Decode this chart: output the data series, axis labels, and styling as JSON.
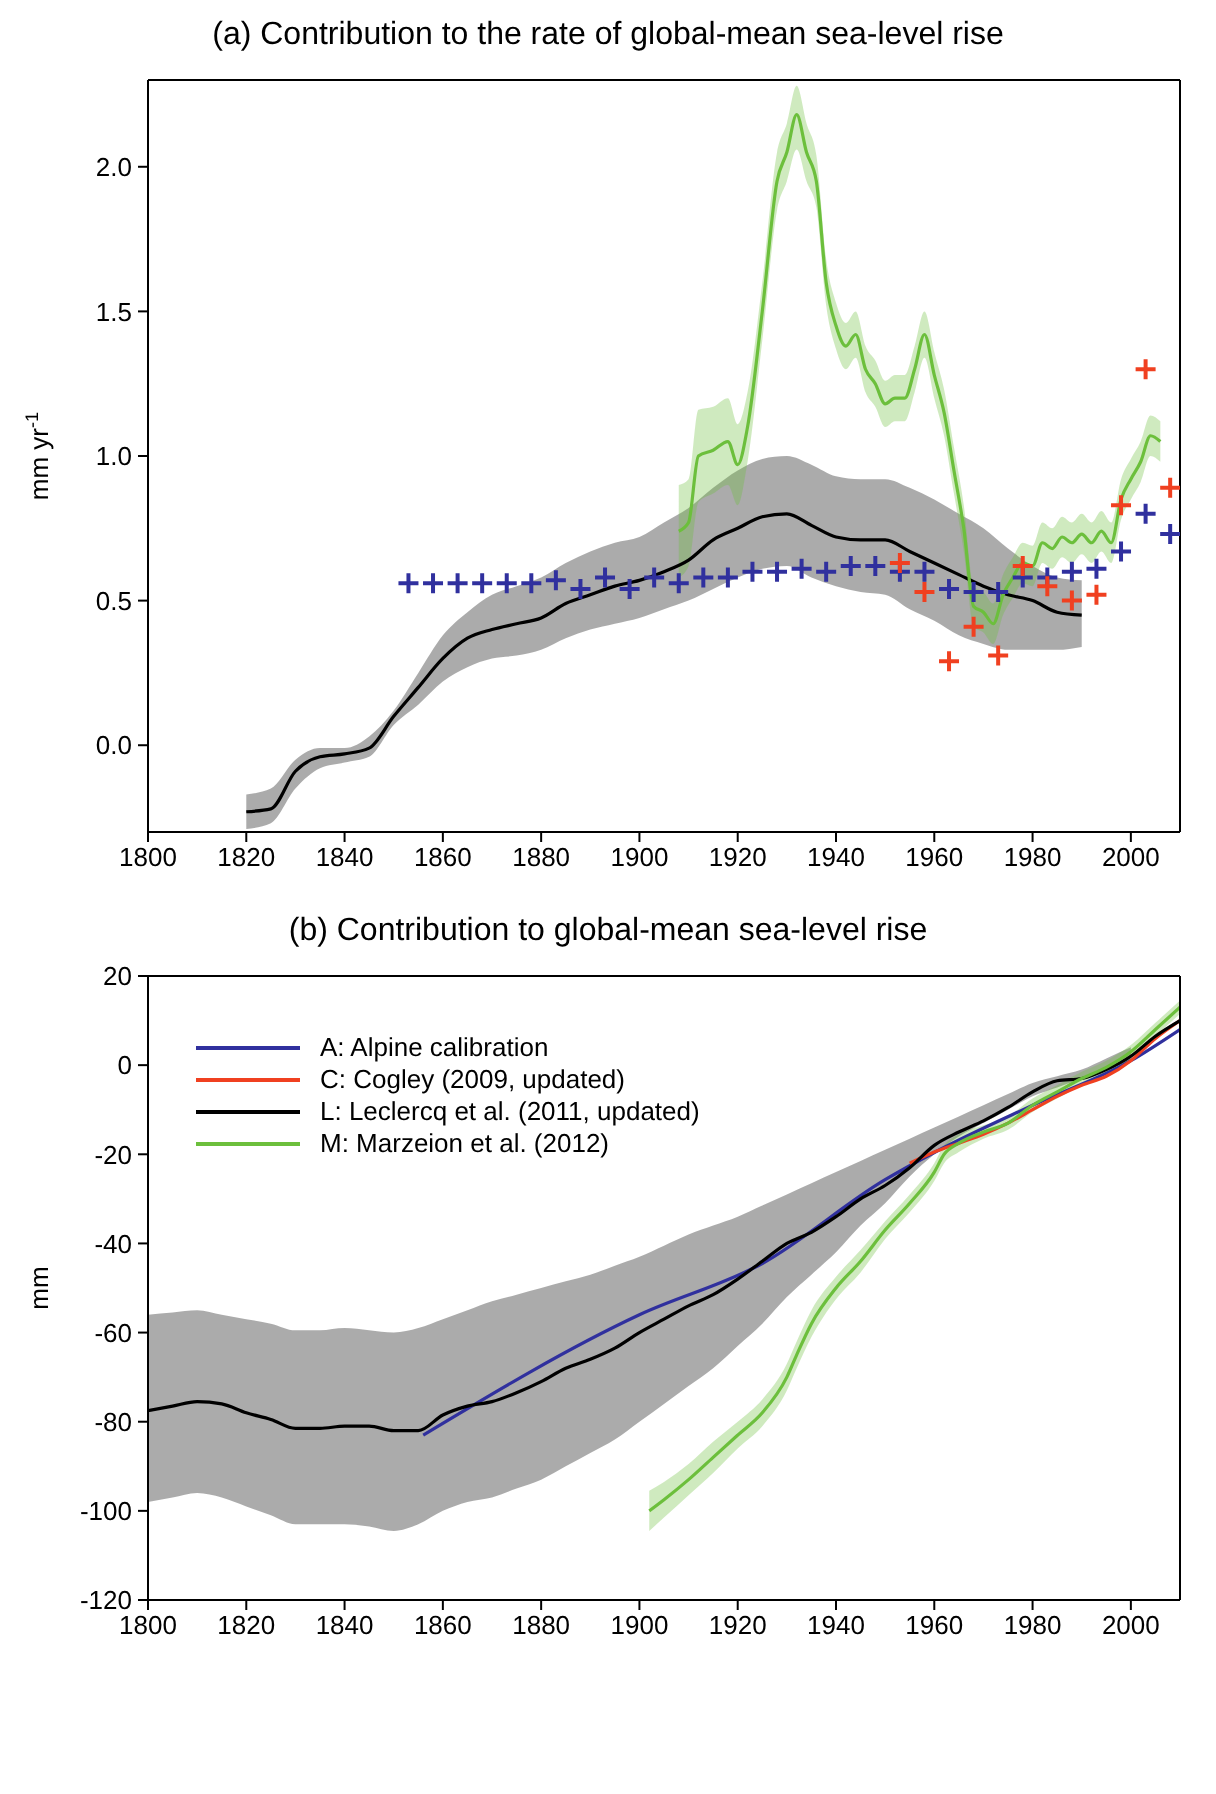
{
  "chart_data": [
    {
      "type": "line",
      "title": "(a) Contribution to the rate of global-mean sea-level rise",
      "ylabel": "mm yr$^{-1}$",
      "xlim": [
        1800,
        2010
      ],
      "xticks": [
        1800,
        1820,
        1840,
        1860,
        1880,
        1900,
        1920,
        1940,
        1960,
        1980,
        2000
      ],
      "ylim": [
        -0.3,
        2.3
      ],
      "yticks": [
        {
          "value": 0,
          "label": "0.0"
        },
        {
          "value": 0.5,
          "label": "0.5"
        },
        {
          "value": 1,
          "label": "1.0"
        },
        {
          "value": 1.5,
          "label": "1.5"
        },
        {
          "value": 2,
          "label": "2.0"
        }
      ],
      "grid": false,
      "legend": false,
      "series": [
        {
          "type": "line",
          "color": "#000000",
          "x": [
            1820,
            1825,
            1830,
            1835,
            1840,
            1845,
            1850,
            1855,
            1860,
            1865,
            1870,
            1875,
            1880,
            1885,
            1890,
            1895,
            1900,
            1905,
            1910,
            1915,
            1920,
            1925,
            1930,
            1935,
            1940,
            1945,
            1950,
            1955,
            1960,
            1965,
            1970,
            1975,
            1980,
            1985,
            1990
          ],
          "values": [
            -0.23,
            -0.22,
            -0.09,
            -0.04,
            -0.03,
            -0.01,
            0.1,
            0.2,
            0.3,
            0.37,
            0.4,
            0.42,
            0.44,
            0.49,
            0.52,
            0.55,
            0.57,
            0.6,
            0.64,
            0.71,
            0.75,
            0.79,
            0.8,
            0.76,
            0.72,
            0.71,
            0.71,
            0.67,
            0.63,
            0.59,
            0.55,
            0.52,
            0.5,
            0.46,
            0.45
          ],
          "lower": [
            -0.29,
            -0.27,
            -0.15,
            -0.08,
            -0.06,
            -0.04,
            0.07,
            0.14,
            0.22,
            0.27,
            0.3,
            0.31,
            0.33,
            0.37,
            0.4,
            0.42,
            0.44,
            0.47,
            0.5,
            0.54,
            0.58,
            0.61,
            0.62,
            0.58,
            0.55,
            0.53,
            0.52,
            0.47,
            0.43,
            0.38,
            0.35,
            0.33,
            0.33,
            0.33,
            0.34
          ],
          "upper": [
            -0.17,
            -0.15,
            -0.05,
            -0.01,
            -0.01,
            0.03,
            0.12,
            0.25,
            0.38,
            0.46,
            0.52,
            0.55,
            0.58,
            0.63,
            0.67,
            0.7,
            0.72,
            0.77,
            0.82,
            0.89,
            0.95,
            0.99,
            1.0,
            0.97,
            0.93,
            0.92,
            0.92,
            0.89,
            0.85,
            0.8,
            0.75,
            0.68,
            0.62,
            0.58,
            0.57
          ]
        },
        {
          "type": "line",
          "color": "#6cbf3c",
          "x": [
            1908,
            1910,
            1912,
            1915,
            1918,
            1920,
            1922,
            1925,
            1928,
            1930,
            1932,
            1934,
            1936,
            1938,
            1940,
            1942,
            1944,
            1946,
            1948,
            1950,
            1952,
            1954,
            1956,
            1958,
            1960,
            1962,
            1964,
            1966,
            1968,
            1970,
            1972,
            1974,
            1976,
            1978,
            1980,
            1982,
            1984,
            1986,
            1988,
            1990,
            1992,
            1994,
            1996,
            1998,
            2000,
            2002,
            2004,
            2006
          ],
          "values": [
            0.74,
            0.77,
            1.0,
            1.02,
            1.05,
            0.97,
            1.1,
            1.5,
            1.95,
            2.05,
            2.18,
            2.05,
            1.95,
            1.6,
            1.45,
            1.38,
            1.42,
            1.3,
            1.25,
            1.18,
            1.2,
            1.2,
            1.3,
            1.42,
            1.28,
            1.15,
            0.95,
            0.75,
            0.48,
            0.46,
            0.42,
            0.52,
            0.58,
            0.63,
            0.62,
            0.7,
            0.68,
            0.72,
            0.7,
            0.73,
            0.7,
            0.74,
            0.7,
            0.85,
            0.92,
            0.98,
            1.07,
            1.05
          ],
          "lower": [
            0.58,
            0.62,
            0.84,
            0.87,
            0.9,
            0.83,
            0.98,
            1.4,
            1.85,
            1.95,
            2.06,
            1.95,
            1.86,
            1.52,
            1.37,
            1.3,
            1.34,
            1.22,
            1.17,
            1.1,
            1.12,
            1.12,
            1.22,
            1.34,
            1.2,
            1.07,
            0.87,
            0.67,
            0.41,
            0.39,
            0.35,
            0.45,
            0.51,
            0.56,
            0.55,
            0.63,
            0.61,
            0.65,
            0.63,
            0.66,
            0.63,
            0.67,
            0.63,
            0.78,
            0.85,
            0.91,
            1.0,
            0.98
          ],
          "upper": [
            0.9,
            0.92,
            1.16,
            1.17,
            1.2,
            1.11,
            1.22,
            1.6,
            2.05,
            2.15,
            2.28,
            2.15,
            2.04,
            1.68,
            1.53,
            1.46,
            1.5,
            1.38,
            1.33,
            1.26,
            1.28,
            1.28,
            1.38,
            1.5,
            1.36,
            1.23,
            1.03,
            0.83,
            0.55,
            0.53,
            0.49,
            0.59,
            0.65,
            0.7,
            0.69,
            0.77,
            0.75,
            0.79,
            0.77,
            0.8,
            0.77,
            0.81,
            0.77,
            0.92,
            0.99,
            1.05,
            1.14,
            1.12
          ]
        },
        {
          "type": "scatter",
          "color": "#30309e",
          "marker": "cross",
          "x": [
            1853,
            1858,
            1863,
            1868,
            1873,
            1878,
            1883,
            1888,
            1893,
            1898,
            1903,
            1908,
            1913,
            1918,
            1923,
            1928,
            1933,
            1938,
            1943,
            1948,
            1953,
            1958,
            1963,
            1968,
            1973,
            1978,
            1983,
            1988,
            1993,
            1998,
            2003,
            2008
          ],
          "values": [
            0.56,
            0.56,
            0.56,
            0.56,
            0.56,
            0.56,
            0.57,
            0.54,
            0.58,
            0.54,
            0.58,
            0.56,
            0.58,
            0.58,
            0.6,
            0.6,
            0.61,
            0.6,
            0.62,
            0.62,
            0.6,
            0.6,
            0.54,
            0.53,
            0.53,
            0.58,
            0.58,
            0.6,
            0.61,
            0.67,
            0.8,
            0.73
          ]
        },
        {
          "type": "scatter",
          "color": "#f04020",
          "marker": "cross",
          "x": [
            1953,
            1958,
            1963,
            1968,
            1973,
            1978,
            1983,
            1988,
            1993,
            1998,
            2003,
            2008
          ],
          "values": [
            0.63,
            0.53,
            0.29,
            0.41,
            0.31,
            0.62,
            0.55,
            0.5,
            0.52,
            0.83,
            1.3,
            0.89
          ]
        }
      ]
    },
    {
      "type": "line",
      "title": "(b) Contribution to global-mean sea-level rise",
      "ylabel": "mm",
      "xlim": [
        1800,
        2010
      ],
      "xticks": [
        1800,
        1820,
        1840,
        1860,
        1880,
        1900,
        1920,
        1940,
        1960,
        1980,
        2000
      ],
      "ylim": [
        -120,
        20
      ],
      "yticks": [
        -120,
        -100,
        -80,
        -60,
        -40,
        -20,
        0,
        20
      ],
      "grid": false,
      "legend": "top left",
      "series": [
        {
          "name": "A: Alpine calibration",
          "color": "#30309e",
          "x": [
            1856,
            1900,
            1925,
            1950,
            1960,
            1980,
            2000,
            2010
          ],
          "values": [
            -83,
            -56,
            -44.5,
            -25.7,
            -19.6,
            -9,
            1,
            8
          ]
        },
        {
          "name": "C: Cogley (2009, updated)",
          "color": "#f04020",
          "x": [
            1955,
            1960,
            1965,
            1970,
            1975,
            1980,
            1985,
            1990,
            1995,
            2000,
            2005,
            2010
          ],
          "values": [
            -22,
            -19.5,
            -17.5,
            -15.5,
            -13,
            -10,
            -7,
            -4.5,
            -2.5,
            1,
            6,
            10
          ]
        },
        {
          "name": "L: Leclercq et al. (2011, updated)",
          "color": "#000000",
          "x": [
            1800,
            1805,
            1810,
            1815,
            1820,
            1825,
            1830,
            1835,
            1840,
            1845,
            1850,
            1855,
            1860,
            1865,
            1870,
            1875,
            1880,
            1885,
            1890,
            1895,
            1900,
            1905,
            1910,
            1915,
            1920,
            1925,
            1930,
            1935,
            1940,
            1945,
            1950,
            1955,
            1960,
            1965,
            1970,
            1975,
            1980,
            1985,
            1990,
            1995,
            2000,
            2005,
            2010
          ],
          "values": [
            -77.5,
            -76.5,
            -75.5,
            -76,
            -78,
            -79.5,
            -81.5,
            -81.5,
            -81,
            -81,
            -82,
            -82,
            -78.5,
            -76.5,
            -75.5,
            -73.5,
            -71,
            -68,
            -66,
            -63.5,
            -60,
            -57,
            -54,
            -51.5,
            -48,
            -44,
            -40,
            -37.5,
            -34,
            -30,
            -27,
            -23,
            -18,
            -15,
            -12.5,
            -9.5,
            -6,
            -3.5,
            -3,
            -1,
            2,
            6.5,
            10
          ],
          "lower": [
            -98,
            -97,
            -96,
            -97,
            -99,
            -101,
            -103,
            -103,
            -103,
            -103.5,
            -104.5,
            -103,
            -100,
            -98,
            -97,
            -95,
            -93,
            -90,
            -87,
            -84,
            -80,
            -76,
            -72,
            -68,
            -63,
            -58,
            -52,
            -47,
            -42,
            -36,
            -31,
            -25,
            -20,
            -16,
            -13,
            -10,
            -7,
            -5,
            -3,
            -1,
            1,
            null,
            null
          ],
          "upper": [
            -56,
            -55.5,
            -55,
            -56,
            -57,
            -58,
            -59.5,
            -59.5,
            -59,
            -59.5,
            -60,
            -59,
            -57,
            -55,
            -53,
            -51.5,
            -50,
            -48.5,
            -47,
            -45,
            -43,
            -40.5,
            -38,
            -36,
            -34,
            -31.5,
            -29,
            -26.5,
            -24,
            -21.5,
            -19,
            -16.5,
            -14,
            -11.5,
            -9,
            -6.5,
            -4,
            -2.5,
            -1,
            1.5,
            4,
            null,
            null
          ]
        },
        {
          "name": "M: Marzeion et al. (2012)",
          "color": "#6cbf3c",
          "x": [
            1902,
            1905,
            1910,
            1915,
            1920,
            1925,
            1930,
            1932,
            1935,
            1940,
            1945,
            1950,
            1955,
            1960,
            1962,
            1965,
            1970,
            1975,
            1980,
            1985,
            1990,
            1995,
            2000,
            2005,
            2010
          ],
          "values": [
            -100,
            -97.5,
            -93,
            -88,
            -83,
            -78,
            -70,
            -65,
            -58,
            -50,
            -44,
            -37,
            -31,
            -24,
            -20,
            -17.5,
            -15,
            -13,
            -9,
            -6,
            -3,
            -0.5,
            3,
            8,
            13
          ],
          "lower": [
            -104.5,
            -101.5,
            -96.5,
            -91.5,
            -86,
            -81,
            -73,
            -68,
            -61,
            -52.5,
            -46.5,
            -39,
            -33,
            -26,
            -22,
            -19.5,
            -16.5,
            -14.5,
            -10.5,
            -7.5,
            -4.5,
            -2,
            1.5,
            6.5,
            11.5
          ],
          "upper": [
            -95.5,
            -93.5,
            -89.5,
            -84.5,
            -80,
            -75,
            -67,
            -62,
            -55,
            -47.5,
            -41.5,
            -35,
            -29,
            -22,
            -18,
            -15.5,
            -13.5,
            -11.5,
            -7.5,
            -4.5,
            -1.5,
            1,
            4.5,
            9.5,
            14.5
          ]
        }
      ]
    }
  ]
}
